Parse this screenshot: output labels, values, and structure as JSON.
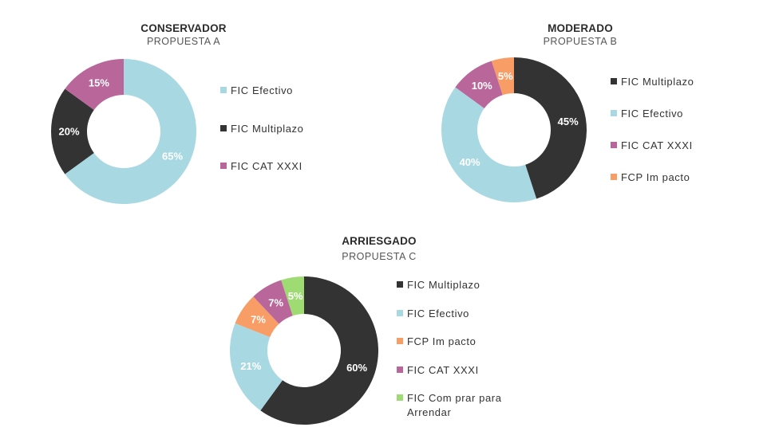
{
  "chart_data": [
    {
      "type": "pie",
      "title": "CONSERVADOR",
      "subtitle": "PROPUESTA A",
      "slices": [
        {
          "label": "FIC Efectivo",
          "value": 65,
          "value_label": "65%",
          "color": "#a8d9e3"
        },
        {
          "label": "FIC Multiplazo",
          "value": 20,
          "value_label": "20%",
          "color": "#333333"
        },
        {
          "label": "FIC CAT XXXI",
          "value": 15,
          "value_label": "15%",
          "color": "#b9679a"
        }
      ],
      "legend": [
        "FIC Efectivo",
        "FIC Multiplazo",
        "FIC CAT XXXI"
      ],
      "legend_placement": "right"
    },
    {
      "type": "pie",
      "title": "MODERADO",
      "subtitle": "PROPUESTA B",
      "slices": [
        {
          "label": "FIC Multiplazo",
          "value": 45,
          "value_label": "45%",
          "color": "#333333"
        },
        {
          "label": "FIC Efectivo",
          "value": 40,
          "value_label": "40%",
          "color": "#a8d9e3"
        },
        {
          "label": "FIC CAT XXXI",
          "value": 10,
          "value_label": "10%",
          "color": "#b9679a"
        },
        {
          "label": "FCP Impacto",
          "value": 5,
          "value_label": "5%",
          "color": "#f89d66"
        }
      ],
      "legend": [
        "FIC Multiplazo",
        "FIC Efectivo",
        "FIC CAT XXXI",
        "FCP Im pacto"
      ],
      "legend_placement": "right"
    },
    {
      "type": "pie",
      "title": "ARRIESGADO",
      "subtitle": "PROPUESTA C",
      "slices": [
        {
          "label": "FIC Multiplazo",
          "value": 60,
          "value_label": "60%",
          "color": "#333333"
        },
        {
          "label": "FIC Efectivo",
          "value": 21,
          "value_label": "21%",
          "color": "#a8d9e3"
        },
        {
          "label": "FCP Impacto",
          "value": 7,
          "value_label": "7%",
          "color": "#f89d66"
        },
        {
          "label": "FIC CAT XXXI",
          "value": 7,
          "value_label": "7%",
          "color": "#b9679a"
        },
        {
          "label": "FIC Comprar para Arrendar",
          "value": 5,
          "value_label": "5%",
          "color": "#9edb72"
        }
      ],
      "legend": [
        "FIC Multiplazo",
        "FIC Efectivo",
        "FCP Im pacto",
        "FIC CAT XXXI",
        "FIC Com prar para\nArrendar"
      ],
      "legend_placement": "right"
    }
  ]
}
